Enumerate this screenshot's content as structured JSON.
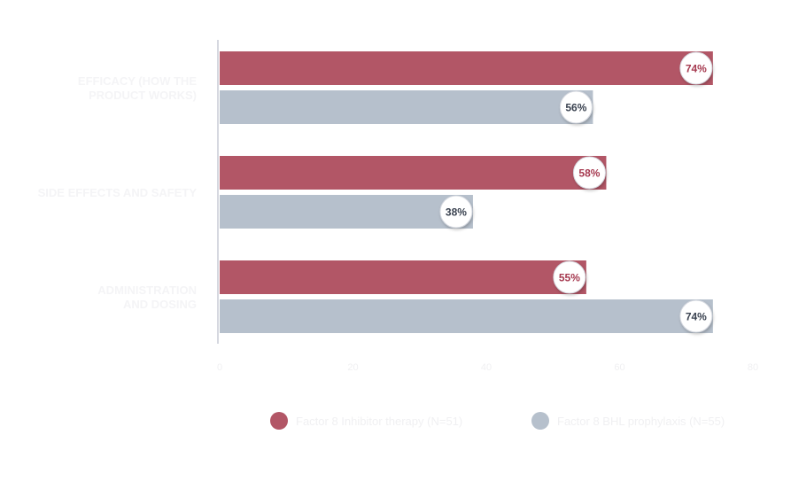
{
  "chart_data": {
    "type": "bar",
    "orientation": "horizontal",
    "categories": [
      [
        "EFFICACY (HOW THE",
        "PRODUCT WORKS)"
      ],
      [
        "SIDE EFFECTS AND SAFETY"
      ],
      [
        "ADMINISTRATION",
        "AND DOSING"
      ]
    ],
    "series": [
      {
        "name": "Factor 8 Inhibitor therapy (N=51)",
        "values": [
          74,
          58,
          55
        ],
        "labels": [
          "74%",
          "58%",
          "55%"
        ],
        "color": "#b25666",
        "label_color": "#a63a50"
      },
      {
        "name": "Factor 8 BHL prophylaxis (N=55)",
        "values": [
          56,
          38,
          74
        ],
        "labels": [
          "56%",
          "38%",
          "74%"
        ],
        "color": "#b6c0cc",
        "label_color": "#3a4250"
      }
    ],
    "xlim": [
      0,
      80
    ],
    "xticks": [
      "0",
      "20",
      "40",
      "60",
      "80"
    ],
    "grid": false,
    "legend": "bottom",
    "axis_color": "#c9ccd6"
  }
}
